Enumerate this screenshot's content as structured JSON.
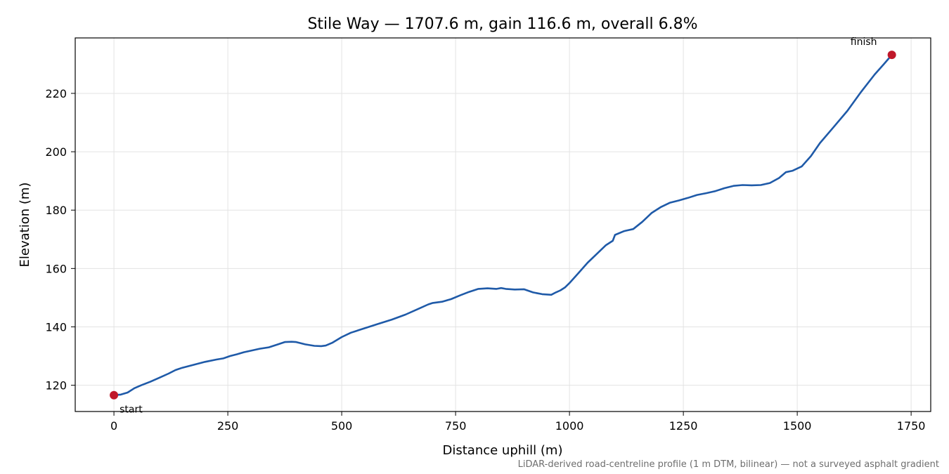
{
  "chart_data": {
    "type": "line",
    "title": "Stile Way — 1707.6 m, gain 116.6 m, overall 6.8%",
    "xlabel": "Distance uphill (m)",
    "ylabel": "Elevation (m)",
    "xlim": [
      -85,
      1793
    ],
    "ylim": [
      111,
      239
    ],
    "xticks": [
      0,
      250,
      500,
      750,
      1000,
      1250,
      1500,
      1750
    ],
    "yticks": [
      120,
      140,
      160,
      180,
      200,
      220
    ],
    "grid": true,
    "line_color": "#1f5aa8",
    "marker_color": "#c0182a",
    "series": [
      {
        "x": [
          0,
          15,
          30,
          45,
          60,
          80,
          100,
          120,
          135,
          150,
          175,
          200,
          225,
          240,
          255,
          270,
          285,
          300,
          320,
          340,
          360,
          375,
          390,
          400,
          420,
          440,
          455,
          465,
          480,
          500,
          520,
          550,
          580,
          610,
          640,
          670,
          690,
          700,
          720,
          740,
          760,
          780,
          800,
          820,
          840,
          850,
          860,
          880,
          900,
          920,
          940,
          960,
          970,
          980,
          990,
          1000,
          1020,
          1040,
          1060,
          1080,
          1095,
          1100,
          1120,
          1140,
          1160,
          1180,
          1200,
          1220,
          1240,
          1260,
          1280,
          1300,
          1320,
          1340,
          1360,
          1380,
          1400,
          1420,
          1440,
          1460,
          1475,
          1490,
          1510,
          1530,
          1550,
          1580,
          1610,
          1640,
          1670,
          1690,
          1707.6
        ],
        "y": [
          116.6,
          116.8,
          117.5,
          119.0,
          120.0,
          121.2,
          122.6,
          124.0,
          125.2,
          126.0,
          127.0,
          128.0,
          128.8,
          129.2,
          130.0,
          130.6,
          131.3,
          131.8,
          132.5,
          133.0,
          134.0,
          134.8,
          134.9,
          134.8,
          134.0,
          133.5,
          133.4,
          133.6,
          134.6,
          136.5,
          138.0,
          139.5,
          141.0,
          142.5,
          144.2,
          146.3,
          147.7,
          148.2,
          148.6,
          149.5,
          150.8,
          152.0,
          153.0,
          153.2,
          153.0,
          153.3,
          153.0,
          152.8,
          152.9,
          151.8,
          151.2,
          151.0,
          151.8,
          152.5,
          153.5,
          155.0,
          158.5,
          162.0,
          165.0,
          168.0,
          169.5,
          171.5,
          172.8,
          173.5,
          176.0,
          179.0,
          181.0,
          182.5,
          183.3,
          184.2,
          185.2,
          185.8,
          186.5,
          187.5,
          188.3,
          188.6,
          188.5,
          188.6,
          189.3,
          191.0,
          193.0,
          193.5,
          195.0,
          198.5,
          203.0,
          208.5,
          214.0,
          220.5,
          226.5,
          230.0,
          233.2
        ]
      }
    ],
    "annotations": [
      {
        "label": "start",
        "x": 0,
        "y": 116.6
      },
      {
        "label": "finish",
        "x": 1707.6,
        "y": 233.2
      }
    ],
    "footnote": "LiDAR-derived road-centreline profile (1 m DTM, bilinear) — not a surveyed asphalt gradient"
  }
}
